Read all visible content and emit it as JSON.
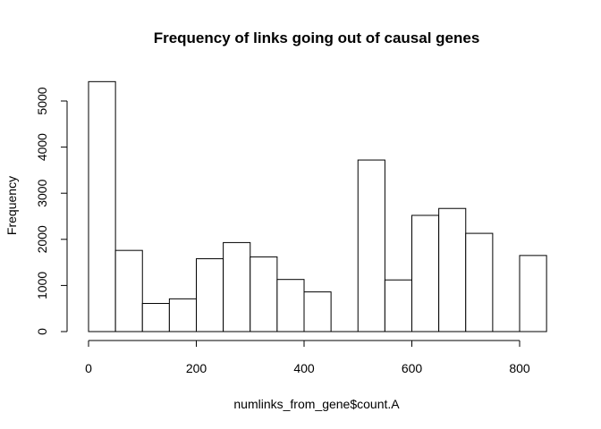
{
  "chart_data": {
    "type": "bar",
    "title": "Frequency of links going out of causal genes",
    "xlabel": "numlinks_from_gene$count.A",
    "ylabel": "Frequency",
    "xlim": [
      0,
      850
    ],
    "ylim": [
      0,
      5400
    ],
    "x_ticks": [
      0,
      200,
      400,
      600,
      800
    ],
    "y_ticks": [
      0,
      1000,
      2000,
      3000,
      4000,
      5000
    ],
    "bin_width": 50,
    "bins": [
      {
        "start": 0,
        "end": 50,
        "count": 5420
      },
      {
        "start": 50,
        "end": 100,
        "count": 1760
      },
      {
        "start": 100,
        "end": 150,
        "count": 610
      },
      {
        "start": 150,
        "end": 200,
        "count": 710
      },
      {
        "start": 200,
        "end": 250,
        "count": 1580
      },
      {
        "start": 250,
        "end": 300,
        "count": 1930
      },
      {
        "start": 300,
        "end": 350,
        "count": 1620
      },
      {
        "start": 350,
        "end": 400,
        "count": 1130
      },
      {
        "start": 400,
        "end": 450,
        "count": 860
      },
      {
        "start": 450,
        "end": 500,
        "count": 0
      },
      {
        "start": 500,
        "end": 550,
        "count": 3720
      },
      {
        "start": 550,
        "end": 600,
        "count": 1120
      },
      {
        "start": 600,
        "end": 650,
        "count": 2520
      },
      {
        "start": 650,
        "end": 700,
        "count": 2670
      },
      {
        "start": 700,
        "end": 750,
        "count": 2130
      },
      {
        "start": 750,
        "end": 800,
        "count": 0
      },
      {
        "start": 800,
        "end": 850,
        "count": 1650
      }
    ],
    "grid": false,
    "legend": "none",
    "colors": {
      "bar_fill": "#ffffff",
      "bar_stroke": "#000000"
    }
  }
}
